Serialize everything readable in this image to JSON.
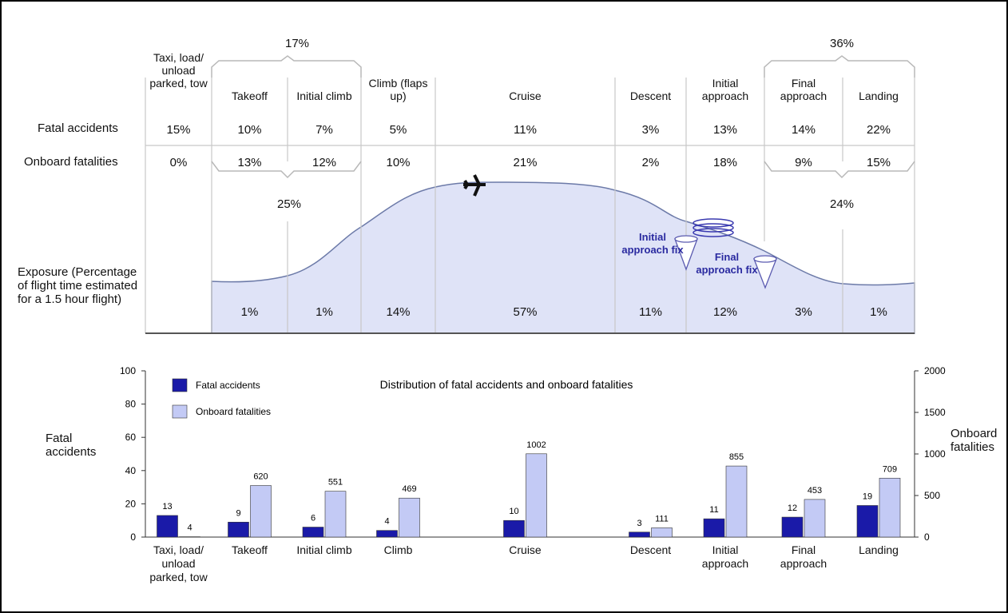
{
  "infographic": {
    "row_labels": {
      "fatal_accidents": "Fatal accidents",
      "onboard_fatalities": "Onboard fatalities",
      "exposure": "Exposure (Percentage of flight time estimated for a 1.5 hour flight)"
    },
    "phases": [
      {
        "name": "Taxi, load/ unload parked, tow",
        "fatal_accidents": "15%",
        "onboard_fatalities": "0%",
        "exposure": null
      },
      {
        "name": "Takeoff",
        "fatal_accidents": "10%",
        "onboard_fatalities": "13%",
        "exposure": "1%"
      },
      {
        "name": "Initial climb",
        "fatal_accidents": "7%",
        "onboard_fatalities": "12%",
        "exposure": "1%"
      },
      {
        "name": "Climb (flaps up)",
        "fatal_accidents": "5%",
        "onboard_fatalities": "10%",
        "exposure": "14%"
      },
      {
        "name": "Cruise",
        "fatal_accidents": "11%",
        "onboard_fatalities": "21%",
        "exposure": "57%"
      },
      {
        "name": "Descent",
        "fatal_accidents": "3%",
        "onboard_fatalities": "2%",
        "exposure": "11%"
      },
      {
        "name": "Initial approach",
        "fatal_accidents": "13%",
        "onboard_fatalities": "18%",
        "exposure": "12%"
      },
      {
        "name": "Final approach",
        "fatal_accidents": "14%",
        "onboard_fatalities": "9%",
        "exposure": "3%"
      },
      {
        "name": "Landing",
        "fatal_accidents": "22%",
        "onboard_fatalities": "15%",
        "exposure": "1%"
      }
    ],
    "top_groups": [
      "17%",
      "36%"
    ],
    "bottom_groups": [
      "25%",
      "24%"
    ],
    "annotations": [
      "Initial approach fix",
      "Final approach fix"
    ]
  },
  "chart_data": {
    "type": "bar",
    "title": "Distribution of fatal accidents and onboard fatalities",
    "categories": [
      "Taxi, load/ unload parked, tow",
      "Takeoff",
      "Initial climb",
      "Climb",
      "Cruise",
      "Descent",
      "Initial approach",
      "Final approach",
      "Landing"
    ],
    "series": [
      {
        "name": "Fatal accidents",
        "color": "#1a1aa8",
        "values": [
          13,
          9,
          6,
          4,
          10,
          3,
          11,
          12,
          19
        ]
      },
      {
        "name": "Onboard fatalities",
        "color": "#c3caf5",
        "axis": "y2",
        "values": [
          4,
          620,
          551,
          469,
          1002,
          111,
          855,
          453,
          709
        ]
      }
    ],
    "ylabel": "Fatal accidents",
    "y2label": "Onboard fatalities",
    "ylim": [
      0,
      100
    ],
    "yticks": [
      0,
      20,
      40,
      60,
      80,
      100
    ],
    "y2lim": [
      0,
      2000
    ],
    "y2ticks": [
      0,
      500,
      1000,
      1500,
      2000
    ],
    "legend": "upper left"
  }
}
